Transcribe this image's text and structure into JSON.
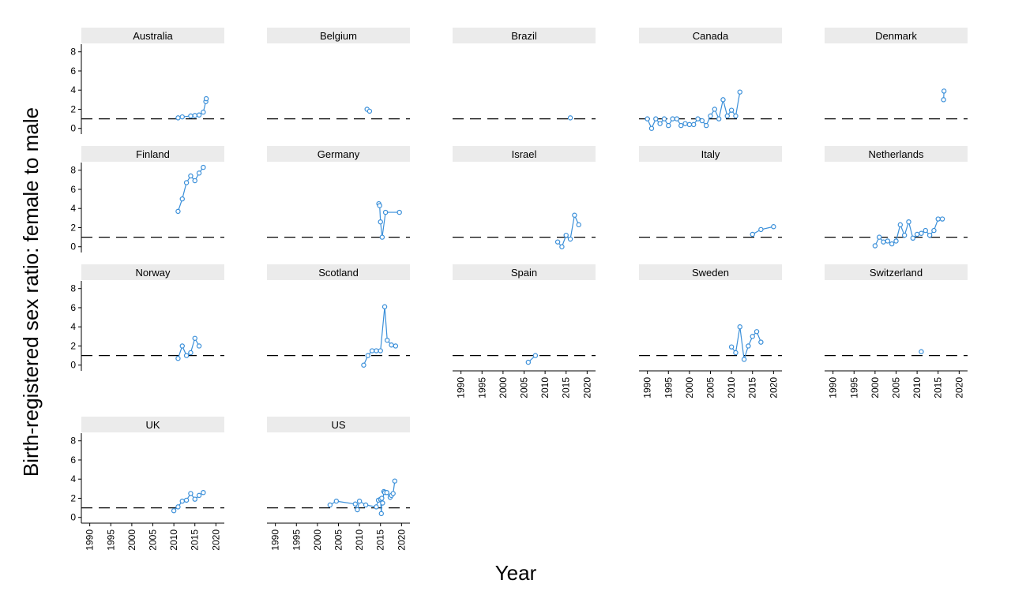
{
  "chart_data": {
    "type": "line",
    "facet_layout": "wrap",
    "xlabel": "Year",
    "ylabel": "Birth-registered sex ratio: female to male",
    "xlim": [
      1988,
      2022
    ],
    "ylim": [
      -0.6,
      8.8
    ],
    "x_ticks": [
      1990,
      1995,
      2000,
      2005,
      2010,
      2015,
      2020
    ],
    "y_ticks": [
      0,
      2,
      4,
      6,
      8
    ],
    "reference_line": {
      "y": 1,
      "style": "dashed"
    },
    "colors": {
      "series": "#3a8fd9",
      "reference": "#000000",
      "strip": "#ebebeb",
      "axis": "#000000"
    },
    "grid": false,
    "panels": [
      {
        "name": "Australia",
        "points": [
          [
            2011,
            1.1
          ],
          [
            2012,
            1.2
          ],
          [
            2014,
            1.3
          ],
          [
            2015,
            1.35
          ],
          [
            2016,
            1.4
          ],
          [
            2017,
            1.7
          ],
          [
            2017.6,
            2.8
          ],
          [
            2017.7,
            3.1
          ]
        ]
      },
      {
        "name": "Belgium",
        "points": [
          [
            2011.8,
            2.0
          ],
          [
            2012.4,
            1.8
          ]
        ]
      },
      {
        "name": "Brazil",
        "points": [
          [
            2016,
            1.1
          ]
        ]
      },
      {
        "name": "Canada",
        "points": [
          [
            1990,
            1.0
          ],
          [
            1991,
            0.0
          ],
          [
            1992,
            1.0
          ],
          [
            1993,
            0.5
          ],
          [
            1994,
            1.0
          ],
          [
            1995,
            0.3
          ],
          [
            1996,
            1.0
          ],
          [
            1997,
            1.0
          ],
          [
            1998,
            0.3
          ],
          [
            1999,
            0.5
          ],
          [
            2000,
            0.4
          ],
          [
            2001,
            0.4
          ],
          [
            2002,
            1.0
          ],
          [
            2003,
            0.8
          ],
          [
            2004,
            0.3
          ],
          [
            2005,
            1.3
          ],
          [
            2006,
            2.0
          ],
          [
            2007,
            1.0
          ],
          [
            2008,
            3.0
          ],
          [
            2009,
            1.3
          ],
          [
            2010,
            1.9
          ],
          [
            2011,
            1.3
          ],
          [
            2012,
            3.8
          ]
        ]
      },
      {
        "name": "Denmark",
        "points": [
          [
            2016.3,
            3.0
          ],
          [
            2016.4,
            3.9
          ]
        ]
      },
      {
        "name": "Finland",
        "points": [
          [
            2011,
            3.7
          ],
          [
            2012,
            5.0
          ],
          [
            2013,
            6.7
          ],
          [
            2014,
            7.4
          ],
          [
            2015,
            6.9
          ],
          [
            2016,
            7.7
          ],
          [
            2017,
            8.3
          ]
        ]
      },
      {
        "name": "Germany",
        "points": [
          [
            2014.6,
            4.5
          ],
          [
            2014.8,
            4.3
          ],
          [
            2015,
            2.6
          ],
          [
            2015.4,
            1.0
          ],
          [
            2016.2,
            3.6
          ],
          [
            2019.5,
            3.6
          ]
        ]
      },
      {
        "name": "Israel",
        "points": [
          [
            2013,
            0.5
          ],
          [
            2014,
            0.0
          ],
          [
            2015,
            1.2
          ],
          [
            2016,
            0.8
          ],
          [
            2017,
            3.3
          ],
          [
            2018,
            2.3
          ]
        ]
      },
      {
        "name": "Italy",
        "points": [
          [
            2015,
            1.3
          ],
          [
            2017,
            1.8
          ],
          [
            2020,
            2.1
          ]
        ]
      },
      {
        "name": "Netherlands",
        "points": [
          [
            2000,
            0.1
          ],
          [
            2001,
            1.0
          ],
          [
            2002,
            0.5
          ],
          [
            2003,
            0.6
          ],
          [
            2004,
            0.3
          ],
          [
            2005,
            0.6
          ],
          [
            2006,
            2.3
          ],
          [
            2007,
            1.2
          ],
          [
            2008,
            2.6
          ],
          [
            2009,
            0.9
          ],
          [
            2010,
            1.3
          ],
          [
            2011,
            1.4
          ],
          [
            2012,
            1.7
          ],
          [
            2013,
            1.2
          ],
          [
            2014,
            1.7
          ],
          [
            2015,
            2.9
          ],
          [
            2016,
            2.9
          ]
        ]
      },
      {
        "name": "Norway",
        "points": [
          [
            2011,
            0.7
          ],
          [
            2012,
            2.0
          ],
          [
            2013,
            1.0
          ],
          [
            2014,
            1.3
          ],
          [
            2015,
            2.8
          ],
          [
            2016,
            2.0
          ]
        ]
      },
      {
        "name": "Scotland",
        "points": [
          [
            2011,
            0.0
          ],
          [
            2012,
            1.0
          ],
          [
            2013,
            1.5
          ],
          [
            2014,
            1.5
          ],
          [
            2015,
            1.5
          ],
          [
            2016,
            6.1
          ],
          [
            2016.6,
            2.6
          ],
          [
            2017.6,
            2.1
          ],
          [
            2018.6,
            2.0
          ]
        ]
      },
      {
        "name": "Spain",
        "points": [
          [
            2006,
            0.3
          ],
          [
            2007.7,
            1.0
          ]
        ]
      },
      {
        "name": "Sweden",
        "points": [
          [
            2010,
            1.9
          ],
          [
            2011,
            1.3
          ],
          [
            2012,
            4.0
          ],
          [
            2013,
            0.6
          ],
          [
            2014,
            2.0
          ],
          [
            2015,
            3.0
          ],
          [
            2016,
            3.5
          ],
          [
            2017,
            2.4
          ]
        ]
      },
      {
        "name": "Switzerland",
        "points": [
          [
            2011,
            1.4
          ]
        ]
      },
      {
        "name": "UK",
        "points": [
          [
            2010,
            0.7
          ],
          [
            2011,
            1.1
          ],
          [
            2012,
            1.7
          ],
          [
            2013,
            1.8
          ],
          [
            2014,
            2.5
          ],
          [
            2015,
            1.9
          ],
          [
            2016,
            2.3
          ],
          [
            2017,
            2.6
          ]
        ]
      },
      {
        "name": "US",
        "points": [
          [
            2003,
            1.3
          ],
          [
            2004.5,
            1.7
          ],
          [
            2009,
            1.4
          ],
          [
            2009.5,
            0.8
          ],
          [
            2010,
            1.7
          ],
          [
            2011.5,
            1.3
          ],
          [
            2014,
            1.1
          ],
          [
            2014.5,
            1.8
          ],
          [
            2015,
            1.9
          ],
          [
            2015.2,
            0.4
          ],
          [
            2015.3,
            2.0
          ],
          [
            2015.5,
            1.5
          ],
          [
            2015.8,
            2.7
          ],
          [
            2016,
            2.6
          ],
          [
            2016.5,
            2.6
          ],
          [
            2017.3,
            2.1
          ],
          [
            2017.6,
            2.3
          ],
          [
            2018,
            2.5
          ],
          [
            2018.4,
            3.8
          ]
        ]
      }
    ]
  }
}
